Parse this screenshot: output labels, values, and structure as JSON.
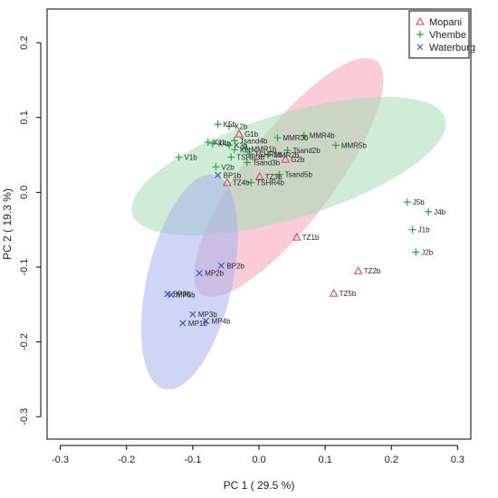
{
  "chart_data": {
    "type": "scatter",
    "title": "",
    "xlabel": "PC 1 ( 29.5 %)",
    "ylabel": "PC 2 ( 19.3 %)",
    "xlim": [
      -0.32,
      0.32
    ],
    "ylim": [
      -0.33,
      0.245
    ],
    "xticks": [
      -0.3,
      -0.2,
      -0.1,
      0.0,
      0.1,
      0.2,
      0.3
    ],
    "xtick_labels": [
      "-0.3",
      "-0.2",
      "-0.1",
      "0.0",
      "0.1",
      "0.2",
      "0.3"
    ],
    "yticks": [
      -0.3,
      -0.2,
      -0.1,
      0.0,
      0.1,
      0.2
    ],
    "ytick_labels": [
      "-0.3",
      "-0.2",
      "-0.1",
      "0.0",
      "0.1",
      "0.2"
    ],
    "grid": false,
    "legend_position": "top-right",
    "series": [
      {
        "name": "Mopani",
        "marker": "triangle",
        "color": "#e8325a",
        "ellipse_fill": "#f4a3b8",
        "ellipse": {
          "cx": 0.045,
          "cy": 0.02,
          "rx": 0.22,
          "ry": 0.06,
          "angle_deg": -53
        },
        "points": [
          {
            "label": "G1b",
            "x": -0.03,
            "y": 0.078
          },
          {
            "label": "G2b",
            "x": 0.04,
            "y": 0.044
          },
          {
            "label": "TZ4b",
            "x": -0.048,
            "y": 0.013
          },
          {
            "label": "TZ1b",
            "x": 0.057,
            "y": -0.06
          },
          {
            "label": "TZ2b",
            "x": 0.15,
            "y": -0.105
          },
          {
            "label": "TZ5b",
            "x": 0.113,
            "y": -0.135
          },
          {
            "label": "TZ3b",
            "x": 0.001,
            "y": 0.021
          }
        ]
      },
      {
        "name": "Vhembe",
        "marker": "plus",
        "color": "#1faa3c",
        "ellipse_fill": "#a6ddb5",
        "ellipse": {
          "cx": 0.045,
          "cy": 0.035,
          "rx": 0.247,
          "ry": 0.07,
          "angle_deg": -17
        },
        "points": [
          {
            "label": "K5b",
            "x": -0.062,
            "y": 0.091
          },
          {
            "label": "K2b",
            "x": -0.045,
            "y": 0.088
          },
          {
            "label": "K1b",
            "x": -0.077,
            "y": 0.067
          },
          {
            "label": "K4b",
            "x": -0.07,
            "y": 0.065
          },
          {
            "label": "K3b",
            "x": -0.045,
            "y": 0.063
          },
          {
            "label": "K6b",
            "x": -0.037,
            "y": 0.057
          },
          {
            "label": "V1b",
            "x": -0.121,
            "y": 0.047
          },
          {
            "label": "V2b",
            "x": -0.065,
            "y": 0.034
          },
          {
            "label": "Tsand4b",
            "x": -0.037,
            "y": 0.069
          },
          {
            "label": "Tsand2b",
            "x": 0.043,
            "y": 0.056
          },
          {
            "label": "Tsand3b",
            "x": -0.018,
            "y": 0.04
          },
          {
            "label": "Tsand5b",
            "x": 0.031,
            "y": 0.024
          },
          {
            "label": "TSHR1b",
            "x": -0.015,
            "y": 0.051
          },
          {
            "label": "TSHR3b",
            "x": -0.042,
            "y": 0.047
          },
          {
            "label": "TSHR4b",
            "x": -0.012,
            "y": 0.013
          },
          {
            "label": "MMR1b",
            "x": -0.02,
            "y": 0.058
          },
          {
            "label": "MMR2b",
            "x": 0.014,
            "y": 0.05
          },
          {
            "label": "MMR3b",
            "x": 0.028,
            "y": 0.073
          },
          {
            "label": "MMR4b",
            "x": 0.068,
            "y": 0.076
          },
          {
            "label": "MMR5b",
            "x": 0.116,
            "y": 0.063
          },
          {
            "label": "J1b",
            "x": 0.232,
            "y": -0.05
          },
          {
            "label": "J2b",
            "x": 0.237,
            "y": -0.08
          },
          {
            "label": "J4b",
            "x": 0.256,
            "y": -0.026
          },
          {
            "label": "J5b",
            "x": 0.224,
            "y": -0.013
          }
        ]
      },
      {
        "name": "Waterburg",
        "marker": "x",
        "color": "#2d4bd6",
        "ellipse_fill": "#a5b3ec",
        "ellipse": {
          "cx": -0.105,
          "cy": -0.12,
          "rx": 0.166,
          "ry": 0.057,
          "angle_deg": -77
        },
        "points": [
          {
            "label": "BP1b",
            "x": -0.062,
            "y": 0.023
          },
          {
            "label": "BP2b",
            "x": -0.057,
            "y": -0.098
          },
          {
            "label": "BP3b",
            "x": -0.138,
            "y": -0.136
          },
          {
            "label": "MP2b",
            "x": -0.09,
            "y": -0.108
          },
          {
            "label": "MP5b",
            "x": -0.133,
            "y": -0.137
          },
          {
            "label": "MP3b",
            "x": -0.1,
            "y": -0.163
          },
          {
            "label": "MP1b",
            "x": -0.115,
            "y": -0.175
          },
          {
            "label": "MP4b",
            "x": -0.08,
            "y": -0.172
          }
        ]
      }
    ]
  }
}
